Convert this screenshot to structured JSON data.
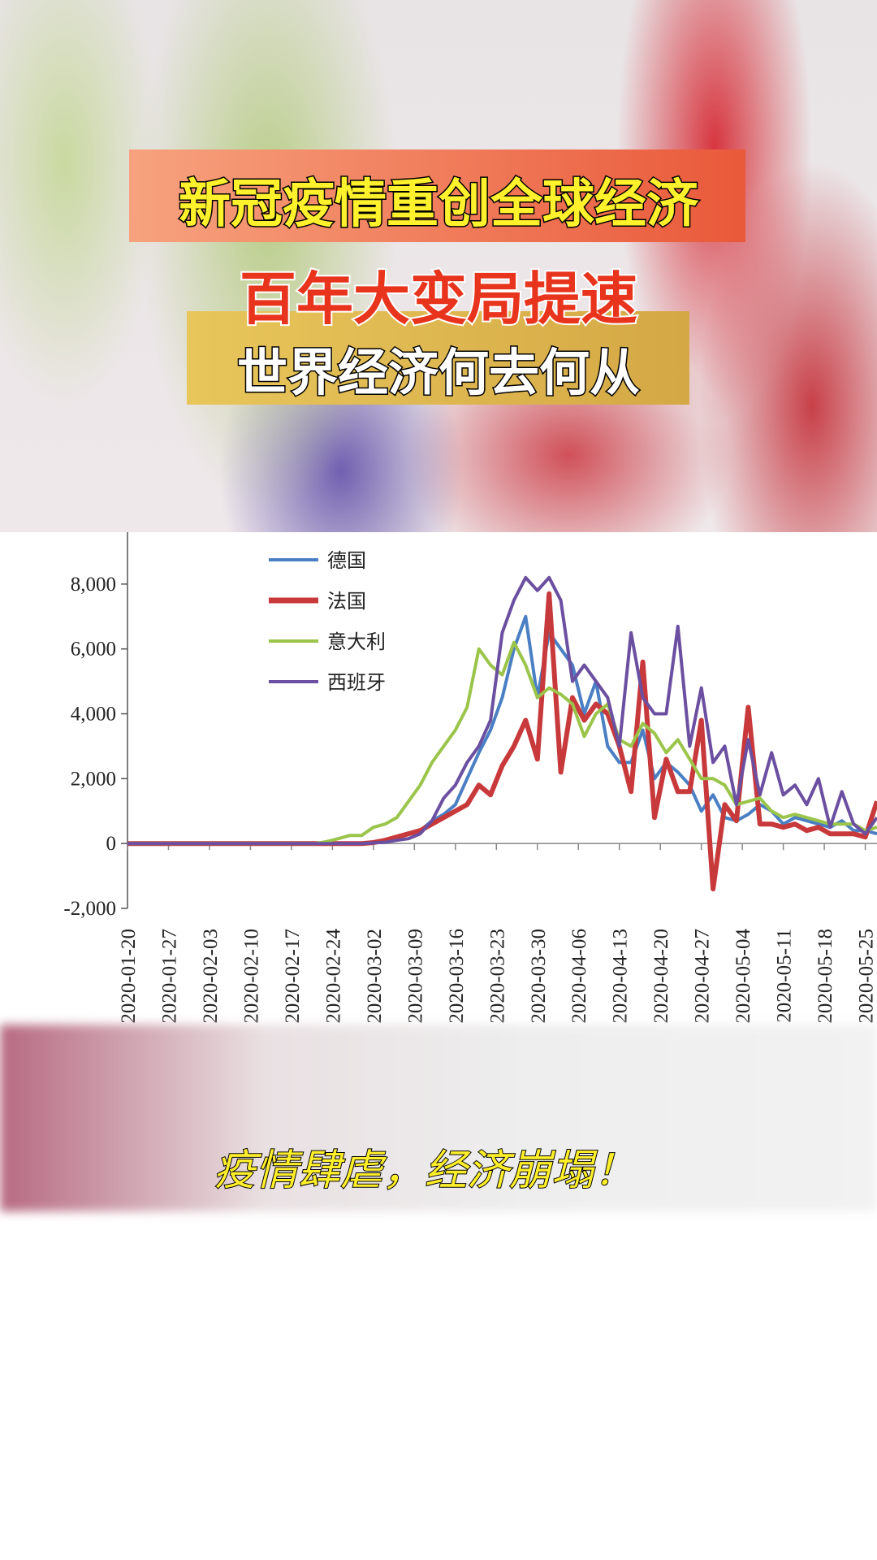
{
  "header": {
    "title": "新冠疫情重创全球经济",
    "subtitle": "百年大变局提速",
    "question": "世界经济何去何从"
  },
  "caption": "疫情肆虐，经济崩塌！",
  "chart_data": {
    "type": "line",
    "x": [
      "2020-01-20",
      "2020-01-22",
      "2020-01-24",
      "2020-01-26",
      "2020-01-28",
      "2020-01-30",
      "2020-02-01",
      "2020-02-03",
      "2020-02-05",
      "2020-02-07",
      "2020-02-09",
      "2020-02-11",
      "2020-02-13",
      "2020-02-15",
      "2020-02-17",
      "2020-02-19",
      "2020-02-21",
      "2020-02-23",
      "2020-02-25",
      "2020-02-27",
      "2020-02-29",
      "2020-03-02",
      "2020-03-04",
      "2020-03-06",
      "2020-03-08",
      "2020-03-10",
      "2020-03-12",
      "2020-03-14",
      "2020-03-16",
      "2020-03-18",
      "2020-03-20",
      "2020-03-22",
      "2020-03-24",
      "2020-03-26",
      "2020-03-28",
      "2020-03-30",
      "2020-04-01",
      "2020-04-03",
      "2020-04-05",
      "2020-04-07",
      "2020-04-09",
      "2020-04-11",
      "2020-04-13",
      "2020-04-15",
      "2020-04-17",
      "2020-04-19",
      "2020-04-21",
      "2020-04-23",
      "2020-04-25",
      "2020-04-27",
      "2020-04-29",
      "2020-05-01",
      "2020-05-03",
      "2020-05-05",
      "2020-05-07",
      "2020-05-09",
      "2020-05-11",
      "2020-05-13",
      "2020-05-15",
      "2020-05-17",
      "2020-05-19",
      "2020-05-21",
      "2020-05-23",
      "2020-05-25",
      "2020-05-27"
    ],
    "series": [
      {
        "name": "德国",
        "color": "#4a7fc4",
        "values": [
          0,
          0,
          0,
          0,
          0,
          0,
          0,
          0,
          0,
          0,
          0,
          0,
          0,
          0,
          0,
          0,
          0,
          0,
          0,
          0,
          0,
          20,
          80,
          150,
          300,
          400,
          700,
          900,
          1200,
          2000,
          2800,
          3500,
          4500,
          6000,
          7000,
          4500,
          6500,
          6000,
          5500,
          4000,
          5000,
          3000,
          2500,
          2500,
          3500,
          2000,
          2500,
          2200,
          1800,
          1000,
          1500,
          800,
          700,
          900,
          1200,
          1000,
          600,
          800,
          700,
          600,
          500,
          700,
          400,
          400,
          300
        ]
      },
      {
        "name": "法国",
        "color": "#c8393b",
        "values": [
          0,
          0,
          0,
          0,
          0,
          0,
          0,
          0,
          0,
          0,
          0,
          0,
          0,
          0,
          0,
          0,
          0,
          0,
          0,
          0,
          0,
          30,
          100,
          200,
          300,
          400,
          600,
          800,
          1000,
          1200,
          1800,
          1500,
          2400,
          3000,
          3800,
          2600,
          7700,
          2200,
          4500,
          3800,
          4300,
          4000,
          3000,
          1600,
          5600,
          800,
          2600,
          1600,
          1600,
          3800,
          -1400,
          1200,
          700,
          4200,
          600,
          600,
          500,
          600,
          400,
          500,
          300,
          300,
          300,
          200,
          1300
        ]
      },
      {
        "name": "意大利",
        "color": "#9bc54a",
        "values": [
          0,
          0,
          0,
          0,
          0,
          0,
          0,
          0,
          0,
          0,
          0,
          0,
          0,
          0,
          0,
          0,
          0,
          60,
          150,
          250,
          250,
          500,
          600,
          800,
          1300,
          1800,
          2500,
          3000,
          3500,
          4200,
          6000,
          5500,
          5200,
          6200,
          5500,
          4500,
          4800,
          4600,
          4300,
          3300,
          4000,
          4300,
          3200,
          3000,
          3700,
          3400,
          2800,
          3200,
          2600,
          2000,
          2000,
          1800,
          1200,
          1300,
          1400,
          1000,
          800,
          900,
          800,
          700,
          600,
          600,
          600,
          400,
          500
        ]
      },
      {
        "name": "西班牙",
        "color": "#6b4fa0",
        "values": [
          0,
          0,
          0,
          0,
          0,
          0,
          0,
          0,
          0,
          0,
          0,
          0,
          0,
          0,
          0,
          0,
          0,
          0,
          0,
          0,
          0,
          20,
          40,
          100,
          150,
          300,
          700,
          1400,
          1800,
          2500,
          3000,
          3800,
          6500,
          7500,
          8200,
          7800,
          8200,
          7500,
          5000,
          5500,
          5000,
          4500,
          3000,
          6500,
          4500,
          4000,
          4000,
          6700,
          3000,
          4800,
          2500,
          3000,
          1200,
          3200,
          1500,
          2800,
          1500,
          1800,
          1200,
          2000,
          500,
          1600,
          600,
          300,
          800
        ]
      }
    ],
    "xlim": [
      "2020-01-20",
      "2020-05-27"
    ],
    "xticks": [
      "2020-01-20",
      "2020-01-27",
      "2020-02-03",
      "2020-02-10",
      "2020-02-17",
      "2020-02-24",
      "2020-03-02",
      "2020-03-09",
      "2020-03-16",
      "2020-03-23",
      "2020-03-30",
      "2020-04-06",
      "2020-04-13",
      "2020-04-20",
      "2020-04-27",
      "2020-05-04",
      "2020-05-11",
      "2020-05-18",
      "2020-05-25"
    ],
    "ylim": [
      -2000,
      9600
    ],
    "yticks": [
      {
        "value": -2000,
        "label": "-2,000"
      },
      0,
      {
        "value": 2000,
        "label": "2,000"
      },
      {
        "value": 4000,
        "label": "4,000"
      },
      {
        "value": 6000,
        "label": "6,000"
      },
      {
        "value": 8000,
        "label": "8,000"
      }
    ]
  }
}
